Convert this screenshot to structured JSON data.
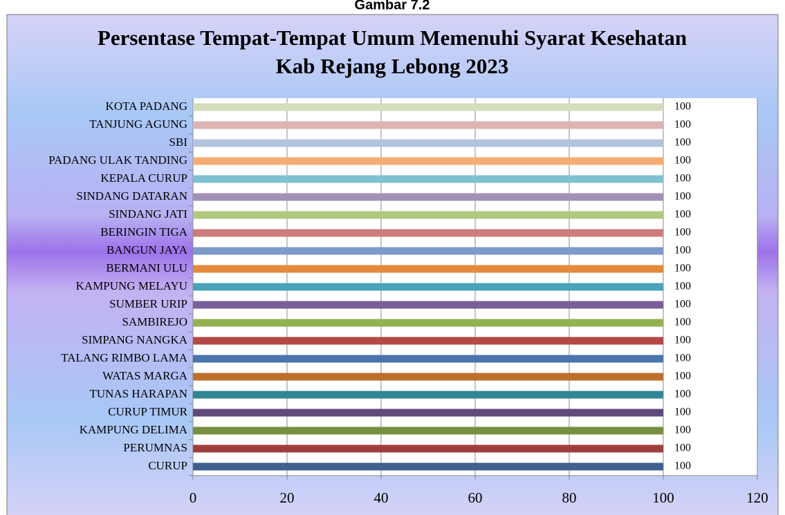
{
  "caption": "Gambar 7.2",
  "chart_data": {
    "type": "barh",
    "title": "Persentase Tempat-Tempat Umum Memenuhi Syarat Kesehatan Kab Rejang Lebong 2023",
    "categories": [
      "CURUP",
      "PERUMNAS",
      "KAMPUNG DELIMA",
      "CURUP TIMUR",
      "TUNAS HARAPAN",
      "WATAS MARGA",
      "TALANG RIMBO LAMA",
      "SIMPANG NANGKA",
      "SAMBIREJO",
      "SUMBER URIP",
      "KAMPUNG MELAYU",
      "BERMANI ULU",
      "BANGUN JAYA",
      "BERINGIN TIGA",
      "SINDANG JATI",
      "SINDANG DATARAN",
      "KEPALA CURUP",
      "PADANG ULAK TANDING",
      "SBI",
      "TANJUNG AGUNG",
      "KOTA PADANG"
    ],
    "values": [
      100,
      100,
      100,
      100,
      100,
      100,
      100,
      100,
      100,
      100,
      100,
      100,
      100,
      100,
      100,
      100,
      100,
      100,
      100,
      100,
      100
    ],
    "colors": [
      "#3f5f8f",
      "#9e3e3b",
      "#77903f",
      "#5f4a7b",
      "#2f8696",
      "#bd6f2b",
      "#4a74ad",
      "#b44845",
      "#93b14f",
      "#7a5f9a",
      "#4aa3b8",
      "#e38b3a",
      "#7e9ac8",
      "#cc7c7a",
      "#b0c880",
      "#a291b6",
      "#7fc0d1",
      "#f7ac74",
      "#b4c3dd",
      "#dcb4b3",
      "#d4ddbc"
    ],
    "xlim": [
      0,
      120
    ],
    "xticks": [
      0,
      20,
      40,
      60,
      80,
      100,
      120
    ],
    "grid": true
  }
}
